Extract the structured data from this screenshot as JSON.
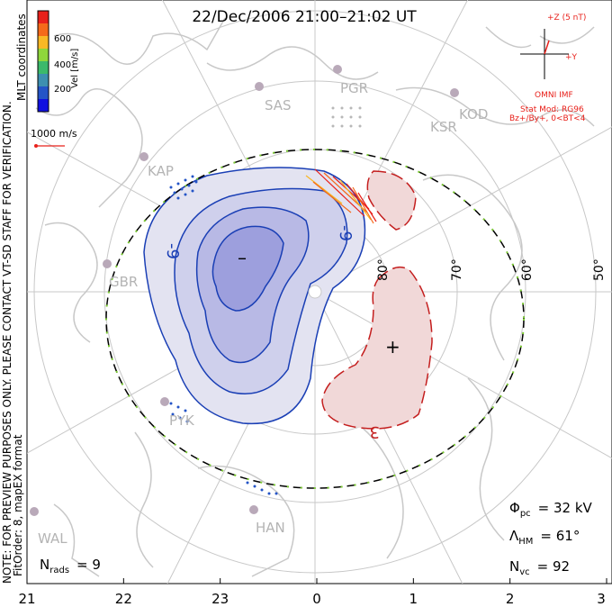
{
  "title": "22/Dec/2006 21:00–21:02 UT",
  "colorbar": {
    "label": "Vel [m/s]",
    "tick_labels": [
      "600",
      "400",
      "200"
    ],
    "colors": [
      "#e8211b",
      "#f56a1a",
      "#f9b825",
      "#8fd63b",
      "#3bb96b",
      "#3d8fb0",
      "#2454c7",
      "#1010e0"
    ]
  },
  "coord_label": "MLT coordinates",
  "vector_scale_label": "1000 m/s",
  "imf": {
    "z_label": "+Z (5 nT)",
    "y_label": "+Y",
    "source": "OMNI IMF",
    "model_line1": "Stat Mod: RG96",
    "model_line2": "Bz+/By+, 0<BT<4"
  },
  "side_note": "NOTE: FOR PREVIEW PURPOSES ONLY. PLEASE CONTACT VT-SD STAFF FOR VERIFICATION.",
  "fit_note": "FitOrder: 8, mapEX format",
  "stations": [
    "SAS",
    "PGR",
    "KSR",
    "KOD",
    "KAP",
    "GBR",
    "PYK",
    "HAN",
    "WAL"
  ],
  "latitude_labels": [
    "80°",
    "70°",
    "60°",
    "50°"
  ],
  "contour_labels": {
    "neg_label": "-9",
    "neg_label2": "-9",
    "pos_label": "3",
    "min_marker": "–",
    "max_marker": "+"
  },
  "stats": {
    "phi_label": "Φ",
    "phi_sub": "pc",
    "phi_value": "= 32 kV",
    "lambda_label": "Λ",
    "lambda_sub": "HM",
    "lambda_value": "= 61°",
    "nvc_label": "N",
    "nvc_sub": "vc",
    "nvc_value": "= 92",
    "nrads_label": "N",
    "nrads_sub": "rads",
    "nrads_value": "= 9"
  },
  "chart_data": {
    "type": "heatmap",
    "title": "22/Dec/2006 21:00–21:02 UT",
    "xlabel": "",
    "ylabel": "",
    "mlt_ticks": [
      "21",
      "22",
      "23",
      "0",
      "1",
      "2",
      "3"
    ],
    "latitude_ticks": [
      "80°",
      "70°",
      "60°",
      "50°"
    ],
    "cross_polar_cap_potential_kV": 32,
    "heppner_maynard_boundary_deg": 61,
    "num_vectors": 92,
    "num_radars": 9
  }
}
